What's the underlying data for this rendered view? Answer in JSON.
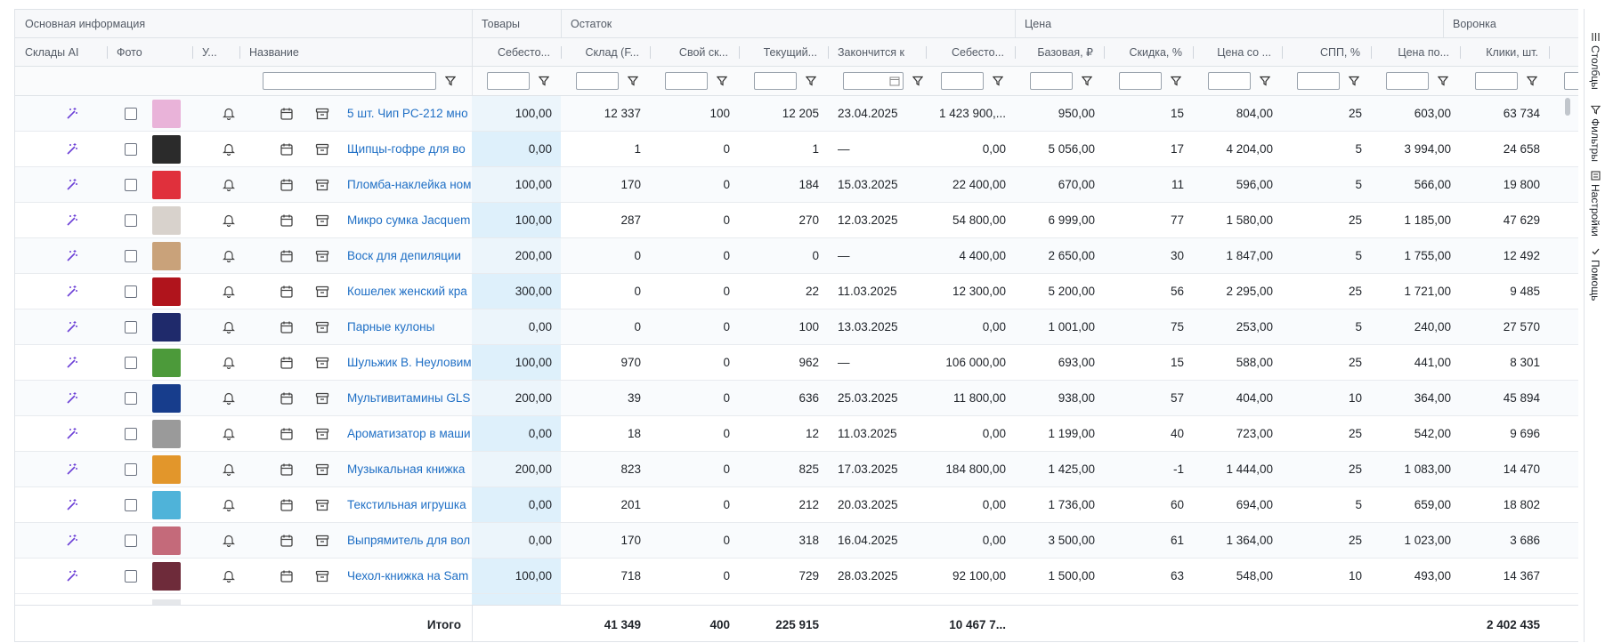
{
  "group_headers": [
    {
      "label": "Основная информация"
    },
    {
      "label": "Товары"
    },
    {
      "label": "Остаток"
    },
    {
      "label": "Цена"
    },
    {
      "label": "Воронка"
    }
  ],
  "columns": [
    {
      "key": "ai",
      "label": "Склады AI"
    },
    {
      "key": "photo",
      "label": "Фото"
    },
    {
      "key": "notify",
      "label": "У..."
    },
    {
      "key": "name",
      "label": "Название"
    },
    {
      "key": "cost",
      "label": "Себесто..."
    },
    {
      "key": "stock_f",
      "label": "Склад (F..."
    },
    {
      "key": "own_stock",
      "label": "Свой ск..."
    },
    {
      "key": "current",
      "label": "Текущий..."
    },
    {
      "key": "ends",
      "label": "Закончится к"
    },
    {
      "key": "cost_total",
      "label": "Себесто..."
    },
    {
      "key": "base_price",
      "label": "Базовая, ₽"
    },
    {
      "key": "discount",
      "label": "Скидка, %"
    },
    {
      "key": "price_disc",
      "label": "Цена со ..."
    },
    {
      "key": "spp",
      "label": "СПП, %"
    },
    {
      "key": "price_after",
      "label": "Цена по..."
    },
    {
      "key": "clicks",
      "label": "Клики, шт."
    }
  ],
  "icons": {
    "ai": "magic-wand-icon",
    "notify": "bell-icon",
    "calendar": "calendar-icon",
    "archive": "archive-box-icon",
    "filter": "filter-funnel-icon"
  },
  "colors": {
    "link": "#1f6fc5",
    "ai_icon": "#6b3fd6",
    "cost_highlight": "#def0fb"
  },
  "rows": [
    {
      "name": "5 шт. Чип PC-212 мно",
      "thumb": "#e9b3d9",
      "cost": "100,00",
      "stock_f": "12 337",
      "own_stock": "100",
      "current": "12 205",
      "ends": "23.04.2025",
      "cost_total": "1 423 900,...",
      "base_price": "950,00",
      "discount": "15",
      "price_disc": "804,00",
      "spp": "25",
      "price_after": "603,00",
      "clicks": "63 734"
    },
    {
      "name": "Щипцы-гофре для во",
      "thumb": "#2b2b2b",
      "cost": "0,00",
      "stock_f": "1",
      "own_stock": "0",
      "current": "1",
      "ends": "—",
      "cost_total": "0,00",
      "base_price": "5 056,00",
      "discount": "17",
      "price_disc": "4 204,00",
      "spp": "5",
      "price_after": "3 994,00",
      "clicks": "24 658"
    },
    {
      "name": "Пломба-наклейка ном",
      "thumb": "#e0303c",
      "cost": "100,00",
      "stock_f": "170",
      "own_stock": "0",
      "current": "184",
      "ends": "15.03.2025",
      "cost_total": "22 400,00",
      "base_price": "670,00",
      "discount": "11",
      "price_disc": "596,00",
      "spp": "5",
      "price_after": "566,00",
      "clicks": "19 800"
    },
    {
      "name": "Микро сумка Jacquem",
      "thumb": "#d8d2cc",
      "cost": "100,00",
      "stock_f": "287",
      "own_stock": "0",
      "current": "270",
      "ends": "12.03.2025",
      "cost_total": "54 800,00",
      "base_price": "6 999,00",
      "discount": "77",
      "price_disc": "1 580,00",
      "spp": "25",
      "price_after": "1 185,00",
      "clicks": "47 629"
    },
    {
      "name": "Воск для депиляции",
      "thumb": "#c9a27a",
      "cost": "200,00",
      "stock_f": "0",
      "own_stock": "0",
      "current": "0",
      "ends": "—",
      "cost_total": "4 400,00",
      "base_price": "2 650,00",
      "discount": "30",
      "price_disc": "1 847,00",
      "spp": "5",
      "price_after": "1 755,00",
      "clicks": "12 492"
    },
    {
      "name": "Кошелек женский кра",
      "thumb": "#b0141c",
      "cost": "300,00",
      "stock_f": "0",
      "own_stock": "0",
      "current": "22",
      "ends": "11.03.2025",
      "cost_total": "12 300,00",
      "base_price": "5 200,00",
      "discount": "56",
      "price_disc": "2 295,00",
      "spp": "25",
      "price_after": "1 721,00",
      "clicks": "9 485"
    },
    {
      "name": "Парные кулоны",
      "thumb": "#1f2a6b",
      "cost": "0,00",
      "stock_f": "0",
      "own_stock": "0",
      "current": "100",
      "ends": "13.03.2025",
      "cost_total": "0,00",
      "base_price": "1 001,00",
      "discount": "75",
      "price_disc": "253,00",
      "spp": "5",
      "price_after": "240,00",
      "clicks": "27 570"
    },
    {
      "name": "Шульжик В. Неуловим",
      "thumb": "#4c9a3a",
      "cost": "100,00",
      "stock_f": "970",
      "own_stock": "0",
      "current": "962",
      "ends": "—",
      "cost_total": "106 000,00",
      "base_price": "693,00",
      "discount": "15",
      "price_disc": "588,00",
      "spp": "25",
      "price_after": "441,00",
      "clicks": "8 301"
    },
    {
      "name": "Мультивитамины GLS",
      "thumb": "#173d8c",
      "cost": "200,00",
      "stock_f": "39",
      "own_stock": "0",
      "current": "636",
      "ends": "25.03.2025",
      "cost_total": "11 800,00",
      "base_price": "938,00",
      "discount": "57",
      "price_disc": "404,00",
      "spp": "10",
      "price_after": "364,00",
      "clicks": "45 894"
    },
    {
      "name": "Ароматизатор в маши",
      "thumb": "#9a9a9a",
      "cost": "0,00",
      "stock_f": "18",
      "own_stock": "0",
      "current": "12",
      "ends": "11.03.2025",
      "cost_total": "0,00",
      "base_price": "1 199,00",
      "discount": "40",
      "price_disc": "723,00",
      "spp": "25",
      "price_after": "542,00",
      "clicks": "9 696"
    },
    {
      "name": "Музыкальная книжка",
      "thumb": "#e2962b",
      "cost": "200,00",
      "stock_f": "823",
      "own_stock": "0",
      "current": "825",
      "ends": "17.03.2025",
      "cost_total": "184 800,00",
      "base_price": "1 425,00",
      "discount": "-1",
      "price_disc": "1 444,00",
      "spp": "25",
      "price_after": "1 083,00",
      "clicks": "14 470"
    },
    {
      "name": "Текстильная игрушка",
      "thumb": "#4fb3d9",
      "cost": "0,00",
      "stock_f": "201",
      "own_stock": "0",
      "current": "212",
      "ends": "20.03.2025",
      "cost_total": "0,00",
      "base_price": "1 736,00",
      "discount": "60",
      "price_disc": "694,00",
      "spp": "5",
      "price_after": "659,00",
      "clicks": "18 802"
    },
    {
      "name": "Выпрямитель для вол",
      "thumb": "#c46a7a",
      "cost": "0,00",
      "stock_f": "170",
      "own_stock": "0",
      "current": "318",
      "ends": "16.04.2025",
      "cost_total": "0,00",
      "base_price": "3 500,00",
      "discount": "61",
      "price_disc": "1 364,00",
      "spp": "25",
      "price_after": "1 023,00",
      "clicks": "3 686"
    },
    {
      "name": "Чехол-книжка на Sam",
      "thumb": "#6e2b3a",
      "cost": "100,00",
      "stock_f": "718",
      "own_stock": "0",
      "current": "729",
      "ends": "28.03.2025",
      "cost_total": "92 100,00",
      "base_price": "1 500,00",
      "discount": "63",
      "price_disc": "548,00",
      "spp": "10",
      "price_after": "493,00",
      "clicks": "14 367"
    }
  ],
  "totals": {
    "label": "Итого",
    "stock_f": "41 349",
    "own_stock": "400",
    "current": "225 915",
    "cost_total": "10 467 7...",
    "clicks": "2 402 435"
  },
  "side_panel": [
    {
      "label": "Столбцы",
      "icon": "columns-icon"
    },
    {
      "label": "Фильтры",
      "icon": "filter-icon"
    },
    {
      "label": "Настройки",
      "icon": "settings-panel-icon"
    },
    {
      "label": "Помощь",
      "icon": "check-icon"
    }
  ]
}
